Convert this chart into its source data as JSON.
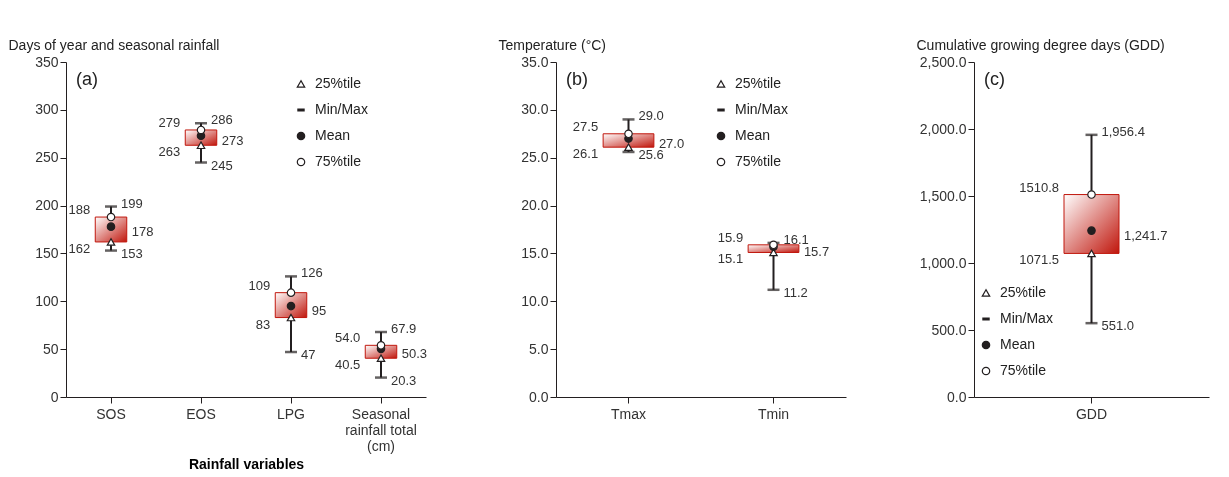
{
  "chart_data": [
    {
      "type": "box",
      "ylabel": "Days of year and seasonal rainfall",
      "xlabel": "Rainfall variables",
      "categories": [
        "SOS",
        "EOS",
        "LPG",
        "Seasonal rainfall total (cm)"
      ],
      "ylim": [
        0,
        350
      ],
      "yticks": [
        0,
        50,
        100,
        150,
        200,
        250,
        300,
        350
      ],
      "legend": "top right",
      "series": [
        {
          "name": "25%tile",
          "type": "scatter",
          "marker": "triangle",
          "color": "#ffffff",
          "values": [
            162,
            263,
            83,
            40.5
          ]
        },
        {
          "name": "Min/Max",
          "type": "box",
          "color": "#c0160c",
          "boxes": [
            {
              "low": 153,
              "q1": 162,
              "q3": 188,
              "high": 199
            },
            {
              "low": 245,
              "q1": 263,
              "q3": 279,
              "high": 286
            },
            {
              "low": 47,
              "q1": 83,
              "q3": 109,
              "high": 126
            },
            {
              "low": 20.3,
              "q1": 40.5,
              "q3": 54.0,
              "high": 67.9
            }
          ]
        },
        {
          "name": "Mean",
          "type": "scatter",
          "marker": "circle",
          "color": "#231f20",
          "values": [
            178,
            273,
            95,
            50.3
          ]
        },
        {
          "name": "75%tile",
          "type": "scatter",
          "marker": "circle",
          "color": "#ffffff",
          "values": [
            188,
            279,
            109,
            54.0
          ]
        }
      ],
      "annotations": [
        "(a)",
        {
          "text": "188",
          "x": "SOS",
          "y": 188
        },
        {
          "text": "162",
          "x": "SOS",
          "y": 162
        },
        {
          "text": "199",
          "x": "SOS",
          "y": 199
        },
        {
          "text": "178",
          "x": "SOS",
          "y": 178
        },
        {
          "text": "153",
          "x": "SOS",
          "y": 153
        },
        {
          "text": "279",
          "x": "EOS",
          "y": 279
        },
        {
          "text": "263",
          "x": "EOS",
          "y": 263
        },
        {
          "text": "286",
          "x": "EOS",
          "y": 286
        },
        {
          "text": "273",
          "x": "EOS",
          "y": 273
        },
        {
          "text": "245",
          "x": "EOS",
          "y": 245
        },
        {
          "text": "109",
          "x": "LPG",
          "y": 109
        },
        {
          "text": "83",
          "x": "LPG",
          "y": 83
        },
        {
          "text": "126",
          "x": "LPG",
          "y": 126
        },
        {
          "text": "95",
          "x": "LPG",
          "y": 95
        },
        {
          "text": "47",
          "x": "LPG",
          "y": 47
        },
        {
          "text": "54.0",
          "x": "Seasonal rainfall total (cm)",
          "y": 54.0
        },
        {
          "text": "40.5",
          "x": "Seasonal rainfall total (cm)",
          "y": 40.5
        },
        {
          "text": "67.9",
          "x": "Seasonal rainfall total (cm)",
          "y": 67.9
        },
        {
          "text": "50.3",
          "x": "Seasonal rainfall total (cm)",
          "y": 50.3
        },
        {
          "text": "20.3",
          "x": "Seasonal rainfall total (cm)",
          "y": 20.3
        }
      ]
    },
    {
      "type": "box",
      "ylabel": "Temperature (°C)",
      "categories": [
        "Tmax",
        "Tmin"
      ],
      "ylim": [
        0,
        35
      ],
      "yticks": [
        {
          "value": 0,
          "label": "0.0"
        },
        {
          "value": 5,
          "label": "5.0"
        },
        {
          "value": 10,
          "label": "10.0"
        },
        {
          "value": 15,
          "label": "15.0"
        },
        {
          "value": 20,
          "label": "20.0"
        },
        {
          "value": 25,
          "label": "25.0"
        },
        {
          "value": 30,
          "label": "30.0"
        },
        {
          "value": 35,
          "label": "35.0"
        }
      ],
      "legend": "top right",
      "series": [
        {
          "name": "25%tile",
          "type": "scatter",
          "marker": "triangle",
          "color": "#ffffff",
          "values": [
            26.1,
            15.1
          ]
        },
        {
          "name": "Min/Max",
          "type": "box",
          "color": "#c0160c",
          "boxes": [
            {
              "low": 25.6,
              "q1": 26.1,
              "q3": 27.5,
              "high": 29.0
            },
            {
              "low": 11.2,
              "q1": 15.1,
              "q3": 15.9,
              "high": 16.1
            }
          ]
        },
        {
          "name": "Mean",
          "type": "scatter",
          "marker": "circle",
          "color": "#231f20",
          "values": [
            27.0,
            15.7
          ]
        },
        {
          "name": "75%tile",
          "type": "scatter",
          "marker": "circle",
          "color": "#ffffff",
          "values": [
            27.5,
            15.9
          ]
        }
      ],
      "annotations": [
        "(b)",
        {
          "text": "27.5",
          "x": "Tmax",
          "y": 27.5
        },
        {
          "text": "26.1",
          "x": "Tmax",
          "y": 26.1
        },
        {
          "text": "29.0",
          "x": "Tmax",
          "y": 29.0
        },
        {
          "text": "27.0",
          "x": "Tmax",
          "y": 27.0
        },
        {
          "text": "25.6",
          "x": "Tmax",
          "y": 25.6
        },
        {
          "text": "15.9",
          "x": "Tmin",
          "y": 15.9
        },
        {
          "text": "15.1",
          "x": "Tmin",
          "y": 15.1
        },
        {
          "text": "16.1",
          "x": "Tmin",
          "y": 16.1
        },
        {
          "text": "15.7",
          "x": "Tmin",
          "y": 15.7
        },
        {
          "text": "11.2",
          "x": "Tmin",
          "y": 11.2
        }
      ]
    },
    {
      "type": "box",
      "ylabel": "Cumulative growing degree days (GDD)",
      "categories": [
        "GDD"
      ],
      "ylim": [
        0,
        2500
      ],
      "yticks": [
        {
          "value": 0,
          "label": "0.0"
        },
        {
          "value": 500,
          "label": "500.0"
        },
        {
          "value": 1000,
          "label": "1,000.0"
        },
        {
          "value": 1500,
          "label": "1,500.0"
        },
        {
          "value": 2000,
          "label": "2,000.0"
        },
        {
          "value": 2500,
          "label": "2,500.0"
        }
      ],
      "legend": "bottom left",
      "series": [
        {
          "name": "25%tile",
          "type": "scatter",
          "marker": "triangle",
          "color": "#ffffff",
          "values": [
            1071.5
          ]
        },
        {
          "name": "Min/Max",
          "type": "box",
          "color": "#c0160c",
          "boxes": [
            {
              "low": 551.0,
              "q1": 1071.5,
              "q3": 1510.8,
              "high": 1956.4
            }
          ]
        },
        {
          "name": "Mean",
          "type": "scatter",
          "marker": "circle",
          "color": "#231f20",
          "values": [
            1241.7
          ]
        },
        {
          "name": "75%tile",
          "type": "scatter",
          "marker": "circle",
          "color": "#ffffff",
          "values": [
            1510.8
          ]
        }
      ],
      "annotations": [
        "(c)",
        {
          "text": "1510.8",
          "x": "GDD",
          "y": 1510.8
        },
        {
          "text": "1071.5",
          "x": "GDD",
          "y": 1071.5
        },
        {
          "text": "1,956.4",
          "x": "GDD",
          "y": 1956.4
        },
        {
          "text": "1,241.7",
          "x": "GDD",
          "y": 1241.7
        },
        {
          "text": "551.0",
          "x": "GDD",
          "y": 551.0
        }
      ]
    }
  ]
}
